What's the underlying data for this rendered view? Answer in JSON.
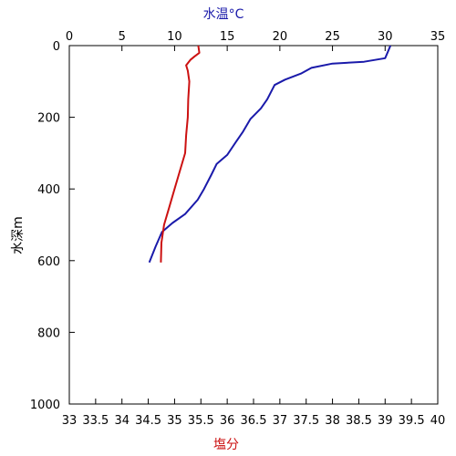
{
  "chart_data": {
    "type": "line",
    "grid": false,
    "legend": "none",
    "top_axis": {
      "label": "水温°C",
      "color": "#1a1aaa",
      "range": [
        0,
        35
      ],
      "ticks": [
        "0",
        "5",
        "10",
        "15",
        "20",
        "25",
        "30",
        "35"
      ]
    },
    "bottom_axis": {
      "label": "塩分",
      "color": "#cc1111",
      "range": [
        33,
        40
      ],
      "ticks": [
        "33",
        "33.5",
        "34",
        "34.5",
        "35",
        "35.5",
        "36",
        "36.5",
        "37",
        "37.5",
        "38",
        "38.5",
        "39",
        "39.5",
        "40"
      ]
    },
    "left_axis": {
      "label": "水深m",
      "range": [
        0,
        1000
      ],
      "inverted": true,
      "ticks": [
        "0",
        "200",
        "400",
        "600",
        "800",
        "1000"
      ]
    },
    "series": [
      {
        "x_axis": "top",
        "color": "#1a1aaa",
        "points": [
          [
            30.5,
            0
          ],
          [
            30.3,
            15
          ],
          [
            30.0,
            35
          ],
          [
            28.0,
            45
          ],
          [
            25.0,
            50
          ],
          [
            23.0,
            62
          ],
          [
            22.0,
            78
          ],
          [
            20.5,
            95
          ],
          [
            19.5,
            110
          ],
          [
            18.8,
            150
          ],
          [
            18.2,
            175
          ],
          [
            17.2,
            205
          ],
          [
            16.5,
            240
          ],
          [
            15.8,
            270
          ],
          [
            15.0,
            305
          ],
          [
            14.0,
            330
          ],
          [
            13.5,
            360
          ],
          [
            12.8,
            400
          ],
          [
            12.2,
            430
          ],
          [
            11.0,
            470
          ],
          [
            9.8,
            495
          ],
          [
            8.8,
            520
          ],
          [
            8.2,
            560
          ],
          [
            7.6,
            605
          ]
        ]
      },
      {
        "x_axis": "bottom",
        "color": "#cc1111",
        "points": [
          [
            35.45,
            0
          ],
          [
            35.47,
            20
          ],
          [
            35.38,
            30
          ],
          [
            35.3,
            40
          ],
          [
            35.22,
            55
          ],
          [
            35.25,
            70
          ],
          [
            35.28,
            100
          ],
          [
            35.26,
            150
          ],
          [
            35.25,
            200
          ],
          [
            35.22,
            250
          ],
          [
            35.2,
            300
          ],
          [
            35.1,
            350
          ],
          [
            35.0,
            400
          ],
          [
            34.9,
            450
          ],
          [
            34.8,
            500
          ],
          [
            34.75,
            550
          ],
          [
            34.74,
            605
          ]
        ]
      }
    ]
  }
}
